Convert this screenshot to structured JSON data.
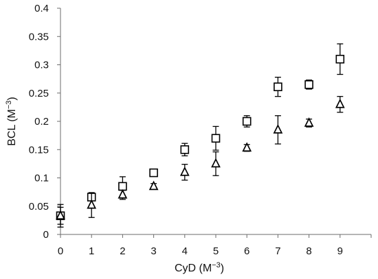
{
  "chart_data": {
    "type": "scatter",
    "xlabel": "CyD (M",
    "xlabel_sup": "−3",
    "xlabel_close": ")",
    "ylabel": "BCL (M",
    "ylabel_sup": "−3",
    "ylabel_close": ")",
    "xlim": [
      0,
      10
    ],
    "ylim": [
      0,
      0.4
    ],
    "x_ticks": [
      0,
      1,
      2,
      3,
      4,
      5,
      6,
      7,
      8,
      9
    ],
    "y_ticks": [
      0,
      0.05,
      0.1,
      0.15,
      0.2,
      0.25,
      0.3,
      0.35,
      0.4
    ],
    "x_tick_labels": [
      "0",
      "1",
      "2",
      "3",
      "4",
      "5",
      "6",
      "7",
      "8",
      "9"
    ],
    "y_tick_labels": [
      "0",
      "0.05",
      "0.1",
      "0.15",
      "0.2",
      "0.25",
      "0.3",
      "0.35",
      "0.4"
    ],
    "grid": false,
    "legend": "none",
    "series": [
      {
        "marker": "square",
        "x": [
          0,
          1,
          2,
          3,
          4,
          5,
          6,
          7,
          8,
          9
        ],
        "y": [
          0.033,
          0.066,
          0.085,
          0.109,
          0.15,
          0.17,
          0.2,
          0.261,
          0.265,
          0.31
        ],
        "error": [
          0.02,
          0.005,
          0.017,
          0.006,
          0.011,
          0.021,
          0.01,
          0.017,
          0.008,
          0.027
        ]
      },
      {
        "marker": "triangle",
        "x": [
          0,
          1,
          2,
          3,
          4,
          5,
          6,
          7,
          8,
          9
        ],
        "y": [
          0.033,
          0.052,
          0.07,
          0.085,
          0.11,
          0.125,
          0.153,
          0.185,
          0.197,
          0.23
        ],
        "error": [
          0.015,
          0.022,
          0.008,
          0.005,
          0.014,
          0.021,
          0.006,
          0.025,
          0.007,
          0.014
        ]
      }
    ]
  }
}
